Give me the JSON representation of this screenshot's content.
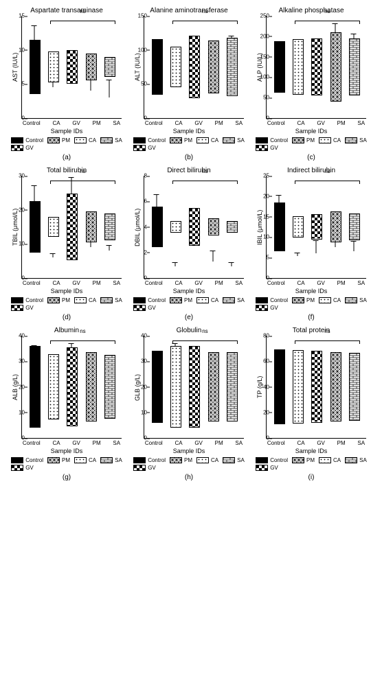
{
  "categories": [
    "Control",
    "CA",
    "GV",
    "PM",
    "SA"
  ],
  "xlabel": "Sample IDs",
  "legend": [
    "Control",
    "PM",
    "CA",
    "SA",
    "GV"
  ],
  "fills": {
    "Control": {
      "type": "solid",
      "color": "#000000"
    },
    "CA": {
      "type": "dots"
    },
    "GV": {
      "type": "checker"
    },
    "PM": {
      "type": "crosshatch"
    },
    "SA": {
      "type": "brick"
    }
  },
  "panels": [
    {
      "id": "a",
      "title": "Aspartate transaminase",
      "ylabel": "AST (IU/L)",
      "ymax": 15,
      "ystep": 5,
      "ns": true,
      "values": [
        8,
        4.5,
        5,
        4,
        3
      ],
      "err": [
        5.5,
        2.2,
        2.7,
        2.3,
        2.6
      ]
    },
    {
      "id": "b",
      "title": "Alanine aminotransferase",
      "ylabel": "ALT (IU/L)",
      "ymax": 150,
      "ystep": 50,
      "ns": true,
      "values": [
        82,
        60,
        92,
        78,
        85
      ],
      "err": [
        22,
        8,
        25,
        30,
        35
      ]
    },
    {
      "id": "c",
      "title": "Alkaline phosphatase",
      "ylabel": "ALP (IU/L)",
      "ymax": 250,
      "ystep": 50,
      "ns": true,
      "values": [
        125,
        135,
        140,
        170,
        140
      ],
      "err": [
        50,
        30,
        35,
        60,
        65
      ]
    },
    {
      "id": "d",
      "title": "Total bilirubin",
      "ylabel": "TBIL (μmol/L)",
      "ymax": 30,
      "ystep": 10,
      "ns": true,
      "values": [
        15,
        6,
        19.5,
        9,
        8
      ],
      "err": [
        12,
        1.2,
        10,
        2,
        1.5
      ]
    },
    {
      "id": "e",
      "title": "Direct bilirubin",
      "ylabel": "DBIL (μmol/L)",
      "ymax": 8,
      "ystep": 2,
      "ns": true,
      "values": [
        3.2,
        0.9,
        3.0,
        1.3,
        0.9
      ],
      "err": [
        3.3,
        0.3,
        0.9,
        0.8,
        0.3
      ]
    },
    {
      "id": "f",
      "title": "Indirect bilirubin",
      "ylabel": "IBIL (μmol/L)",
      "ymax": 25,
      "ystep": 5,
      "ns": true,
      "values": [
        12,
        5.3,
        6.1,
        7.5,
        6.5
      ],
      "err": [
        8.2,
        0.9,
        3,
        2,
        2.5
      ]
    },
    {
      "id": "g",
      "title": "Albumin",
      "ylabel": "ALB (g/L)",
      "ymax": 40,
      "ystep": 10,
      "ns": true,
      "values": [
        32,
        25.5,
        31,
        27,
        25
      ],
      "err": [
        4,
        1,
        6,
        2,
        1.2
      ]
    },
    {
      "id": "h",
      "title": "Globulin",
      "ylabel": "GLB (g/L)",
      "ymax": 40,
      "ystep": 10,
      "ns": true,
      "values": [
        28,
        32,
        32,
        27,
        27
      ],
      "err": [
        3,
        5,
        3,
        2,
        6
      ]
    },
    {
      "id": "i",
      "title": "Total protein",
      "ylabel": "TP (g/L)",
      "ymax": 80,
      "ystep": 20,
      "ns": true,
      "values": [
        59,
        57,
        56,
        54,
        53
      ],
      "err": [
        4,
        6,
        5,
        4,
        6
      ]
    }
  ],
  "ns_text": "ns",
  "colors": {
    "stroke": "#000000",
    "bg": "#ffffff"
  }
}
